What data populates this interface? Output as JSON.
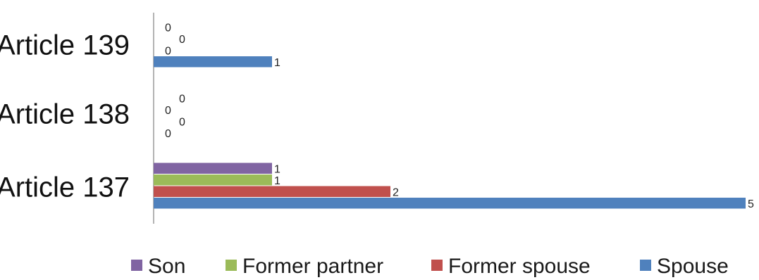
{
  "chart_data": {
    "type": "bar",
    "orientation": "horizontal",
    "categories": [
      "Article 137",
      "Article 138",
      "Article 139"
    ],
    "series": [
      {
        "name": "Spouse",
        "color": "#4f81bd",
        "values": [
          5,
          0,
          1
        ]
      },
      {
        "name": "Former spouse",
        "color": "#c0504d",
        "values": [
          2,
          0,
          0
        ]
      },
      {
        "name": "Former partner",
        "color": "#9bbb59",
        "values": [
          1,
          0,
          0
        ]
      },
      {
        "name": "Son",
        "color": "#8064a2",
        "values": [
          1,
          0,
          0
        ]
      }
    ],
    "legend_order": [
      "Son",
      "Former partner",
      "Former spouse",
      "Spouse"
    ],
    "legend_position": "bottom",
    "xlim": [
      0,
      5
    ],
    "grid": false,
    "data_labels": true
  }
}
